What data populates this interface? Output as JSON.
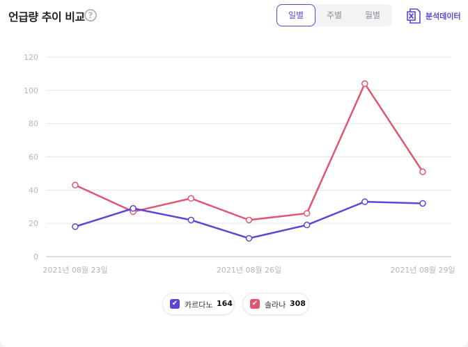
{
  "header": {
    "title": "언급량 추이 비교",
    "help_icon": "?",
    "period_tabs": [
      "일별",
      "주별",
      "월별"
    ],
    "active_tab": "일별",
    "export_label": "분석데이터",
    "export_icon": "excel-icon"
  },
  "colors": {
    "accent": "#5a45d6",
    "series1": "#5a45d6",
    "series2": "#e2546f",
    "grid": "#e4e4e4",
    "tick": "#b5b5b5"
  },
  "legend": [
    {
      "name": "카르다노",
      "count": "164",
      "checked": true
    },
    {
      "name": "솔라나",
      "count": "308",
      "checked": true
    }
  ],
  "chart_data": {
    "type": "line",
    "x": [
      "2021년 08월 23일",
      "2021년 08월 24일",
      "2021년 08월 25일",
      "2021년 08월 26일",
      "2021년 08월 27일",
      "2021년 08월 28일",
      "2021년 08월 29일"
    ],
    "x_tick_labels": [
      "2021년 08월 23일",
      "2021년 08월 26일",
      "2021년 08월 29일"
    ],
    "series": [
      {
        "name": "카르다노",
        "values": [
          18,
          29,
          22,
          11,
          19,
          33,
          32
        ]
      },
      {
        "name": "솔라나",
        "values": [
          43,
          27,
          35,
          22,
          26,
          104,
          51
        ]
      }
    ],
    "ylim": [
      0,
      120
    ],
    "yticks": [
      0,
      20,
      40,
      60,
      80,
      100,
      120
    ],
    "grid": true,
    "legend_position": "bottom-center"
  }
}
